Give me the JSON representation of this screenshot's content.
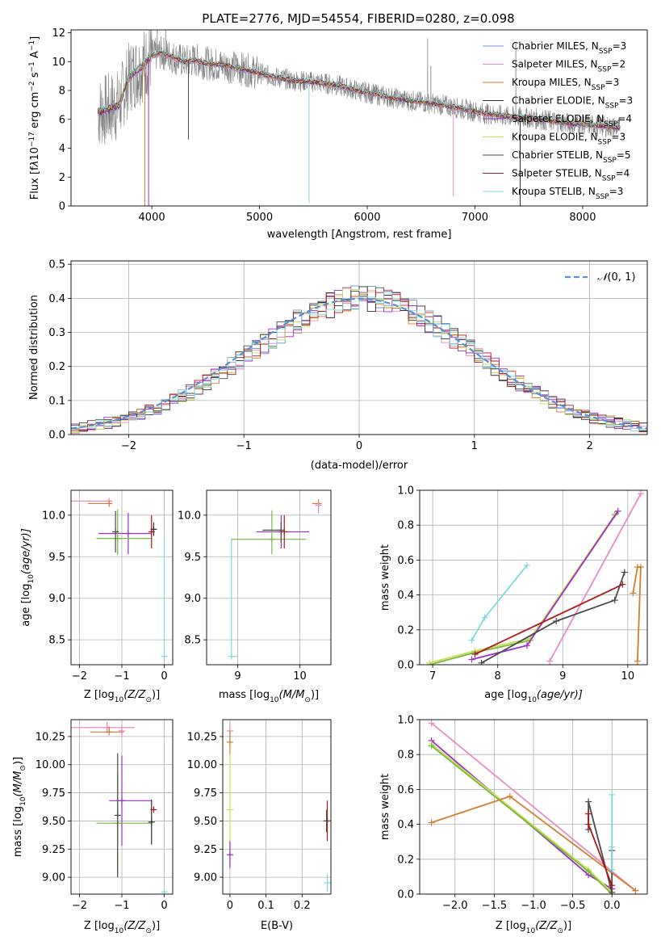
{
  "figure": {
    "title": "PLATE=2776, MJD=54554, FIBERID=0280, z=0.098"
  },
  "chart_data": [
    {
      "id": "spectrum",
      "type": "line",
      "xlabel": "wavelength [Angstrom, rest frame]",
      "ylabel_parts": [
        "Flux [f",
        "λ",
        "10",
        "−17",
        " erg cm",
        "−2",
        " s",
        "−1",
        " A",
        "−1",
        "]"
      ],
      "xlim": [
        3250,
        8600
      ],
      "ylim": [
        0,
        12.2
      ],
      "xticks": [
        4000,
        5000,
        6000,
        7000,
        8000
      ],
      "yticks": [
        0,
        2,
        4,
        6,
        8,
        10,
        12
      ],
      "grid": false,
      "legend_position": "top-right",
      "legend": [
        {
          "label": "Chabrier MILES, N",
          "sub": "SSP",
          "tail": "=3",
          "color": "#6b8fd6"
        },
        {
          "label": "Salpeter MILES, N",
          "sub": "SSP",
          "tail": "=2",
          "color": "#e88cc4"
        },
        {
          "label": "Kroupa MILES, N",
          "sub": "SSP",
          "tail": "=3",
          "color": "#d07f2f"
        },
        {
          "label": "Chabrier ELODIE, N",
          "sub": "SSP",
          "tail": "=3",
          "color": "#2f2f2f"
        },
        {
          "label": "Salpeter ELODIE, N",
          "sub": "SSP",
          "tail": "=4",
          "color": "#9b2fc8"
        },
        {
          "label": "Kroupa ELODIE, N",
          "sub": "SSP",
          "tail": "=3",
          "color": "#c7e15a"
        },
        {
          "label": "Chabrier STELIB, N",
          "sub": "SSP",
          "tail": "=5",
          "color": "#4a4a4a"
        },
        {
          "label": "Salpeter STELIB, N",
          "sub": "SSP",
          "tail": "=4",
          "color": "#b01818"
        },
        {
          "label": "Kroupa STELIB, N",
          "sub": "SSP",
          "tail": "=3",
          "color": "#7fd9dc"
        }
      ],
      "data_color": "#808080",
      "envelope": [
        [
          3500,
          6.5
        ],
        [
          3600,
          6.7
        ],
        [
          3700,
          7.0
        ],
        [
          3750,
          8.2
        ],
        [
          3800,
          9.0
        ],
        [
          3900,
          9.6
        ],
        [
          4000,
          10.4
        ],
        [
          4100,
          10.6
        ],
        [
          4200,
          10.3
        ],
        [
          4300,
          10.0
        ],
        [
          4400,
          10.1
        ],
        [
          4500,
          9.9
        ],
        [
          4700,
          9.7
        ],
        [
          4900,
          9.4
        ],
        [
          5100,
          9.0
        ],
        [
          5300,
          8.7
        ],
        [
          5500,
          8.6
        ],
        [
          5700,
          8.4
        ],
        [
          5900,
          8.0
        ],
        [
          6100,
          7.7
        ],
        [
          6300,
          7.4
        ],
        [
          6500,
          7.2
        ],
        [
          6700,
          7.0
        ],
        [
          6900,
          6.7
        ],
        [
          7100,
          6.4
        ],
        [
          7300,
          6.2
        ],
        [
          7500,
          6.1
        ],
        [
          7700,
          5.9
        ],
        [
          7900,
          5.7
        ],
        [
          8100,
          5.6
        ],
        [
          8350,
          5.4
        ]
      ],
      "dips": [
        [
          3935,
          0
        ],
        [
          3970,
          0
        ],
        [
          4340,
          4.6
        ],
        [
          5460,
          0.2
        ],
        [
          6800,
          0.7
        ],
        [
          7420,
          0
        ]
      ],
      "spikes": [
        [
          6560,
          11.6
        ],
        [
          6590,
          9.7
        ],
        [
          7380,
          11.3
        ],
        [
          4050,
          12.2
        ],
        [
          4130,
          12.2
        ]
      ]
    },
    {
      "id": "residuals",
      "type": "histogram",
      "xlabel": "(data-model)/error",
      "ylabel": "Normed distribution",
      "xlim": [
        -2.5,
        2.5
      ],
      "ylim": [
        0,
        0.51
      ],
      "xticks": [
        -2,
        -1,
        0,
        1,
        2
      ],
      "yticks": [
        0.0,
        0.1,
        0.2,
        0.3,
        0.4,
        0.5
      ],
      "grid": true,
      "legend_position": "top-right",
      "legend_label_parts": [
        "𝒩",
        "(0, 1)"
      ],
      "gauss_color": "#5b8dd9",
      "bin_width": 0.1,
      "bin_start": -2.5,
      "base": [
        0.018,
        0.02,
        0.025,
        0.03,
        0.035,
        0.04,
        0.046,
        0.052,
        0.06,
        0.068,
        0.078,
        0.088,
        0.1,
        0.112,
        0.124,
        0.138,
        0.152,
        0.168,
        0.184,
        0.2,
        0.216,
        0.232,
        0.25,
        0.266,
        0.284,
        0.3,
        0.316,
        0.332,
        0.346,
        0.36,
        0.372,
        0.38,
        0.39,
        0.396,
        0.4,
        0.405,
        0.4,
        0.398,
        0.39,
        0.38,
        0.37,
        0.36,
        0.345,
        0.33,
        0.316,
        0.3,
        0.282,
        0.266,
        0.25,
        0.232,
        0.214,
        0.198,
        0.182,
        0.166,
        0.15,
        0.136,
        0.122,
        0.11,
        0.098,
        0.086,
        0.076,
        0.066,
        0.058,
        0.05,
        0.044,
        0.038,
        0.032,
        0.028,
        0.024,
        0.02
      ]
    },
    {
      "id": "age-vs-Z",
      "type": "scatter",
      "xlabel_parts": [
        "Z [log",
        "10",
        "(Z/Z",
        "⊙",
        ")]"
      ],
      "ylabel_parts": [
        "age  [log",
        "10",
        "(age/yr)]"
      ],
      "xlim": [
        -2.2,
        0.2
      ],
      "ylim": [
        8.2,
        10.3
      ],
      "xticks": [
        -2,
        -1,
        0
      ],
      "yticks": [
        8.5,
        9.0,
        9.5,
        10.0
      ],
      "grid": true,
      "errorbars": [
        {
          "x": -1.3,
          "y": 10.17,
          "xerr": [
            1.0,
            0.05
          ],
          "yerr": [
            0.0,
            0.0
          ],
          "color": "#e88cc4"
        },
        {
          "x": -1.3,
          "y": 10.14,
          "xerr": [
            0.5,
            0.0
          ],
          "yerr": [
            0.0,
            0.0
          ],
          "color": "#d07f2f"
        },
        {
          "x": -0.85,
          "y": 9.78,
          "xerr": [
            0.7,
            0.55
          ],
          "yerr": [
            0.25,
            0.25
          ],
          "color": "#9b2fc8"
        },
        {
          "x": -1.1,
          "y": 9.72,
          "xerr": [
            0.5,
            0.8
          ],
          "yerr": [
            0.2,
            0.35
          ],
          "color": "#7ab83a"
        },
        {
          "x": -0.25,
          "y": 9.83,
          "xerr": [
            0.0,
            0.0
          ],
          "yerr": [
            0.08,
            0.08
          ],
          "color": "#2f2f2f"
        },
        {
          "x": -0.3,
          "y": 9.8,
          "xerr": [
            0.0,
            0.0
          ],
          "yerr": [
            0.2,
            0.2
          ],
          "color": "#b01818"
        },
        {
          "x": -1.15,
          "y": 9.8,
          "xerr": [
            0.0,
            0.0
          ],
          "yerr": [
            0.25,
            0.25
          ],
          "color": "#4a4a4a"
        },
        {
          "x": 0.0,
          "y": 8.3,
          "xerr": [
            0.0,
            0.05
          ],
          "yerr": [
            0.0,
            1.45
          ],
          "color": "#7fd9dc"
        }
      ]
    },
    {
      "id": "age-vs-mass",
      "type": "scatter",
      "xlabel_parts": [
        "mass [log",
        "10",
        "(M/M",
        "⊙",
        ")]"
      ],
      "xlim": [
        8.5,
        10.5
      ],
      "ylim": [
        8.2,
        10.3
      ],
      "xticks": [
        9,
        10
      ],
      "yticks": [
        8.5,
        9.0,
        9.5,
        10.0
      ],
      "grid": true,
      "errorbars": [
        {
          "x": 10.3,
          "y": 10.14,
          "xerr": [
            0.1,
            0.05
          ],
          "yerr": [
            0.05,
            0.05
          ],
          "color": "#d07f2f"
        },
        {
          "x": 10.3,
          "y": 10.12,
          "xerr": [
            0.0,
            0.05
          ],
          "yerr": [
            0.1,
            0.05
          ],
          "color": "#e88cc4"
        },
        {
          "x": 9.7,
          "y": 9.8,
          "xerr": [
            0.4,
            0.45
          ],
          "yerr": [
            0.2,
            0.2
          ],
          "color": "#9b2fc8"
        },
        {
          "x": 9.55,
          "y": 9.71,
          "xerr": [
            0.65,
            0.55
          ],
          "yerr": [
            0.18,
            0.35
          ],
          "color": "#7ab83a"
        },
        {
          "x": 9.7,
          "y": 9.82,
          "xerr": [
            0.3,
            0.0
          ],
          "yerr": [
            0.15,
            0.1
          ],
          "color": "#4a4a4a"
        },
        {
          "x": 9.75,
          "y": 9.8,
          "xerr": [
            0.0,
            0.0
          ],
          "yerr": [
            0.2,
            0.2
          ],
          "color": "#b01818"
        },
        {
          "x": 8.9,
          "y": 8.3,
          "xerr": [
            0.0,
            0.1
          ],
          "yerr": [
            0.0,
            1.42
          ],
          "color": "#7fd9dc"
        }
      ]
    },
    {
      "id": "massweight-vs-age",
      "type": "line",
      "xlabel_parts": [
        "age  [log",
        "10",
        "(age/yr)]"
      ],
      "ylabel": "mass weight",
      "xlim": [
        6.8,
        10.3
      ],
      "ylim": [
        0.0,
        1.0
      ],
      "xticks": [
        7,
        8,
        9,
        10
      ],
      "yticks": [
        0.0,
        0.2,
        0.4,
        0.6,
        0.8,
        1.0
      ],
      "grid": true,
      "series": [
        {
          "color": "#7ab83a",
          "x": [
            6.95,
            7.65,
            8.5,
            9.8
          ],
          "y": [
            0.0,
            0.07,
            0.14,
            0.86
          ]
        },
        {
          "color": "#c7e15a",
          "x": [
            6.95,
            7.65,
            8.5,
            9.82
          ],
          "y": [
            0.01,
            0.08,
            0.15,
            0.87
          ]
        },
        {
          "color": "#9b2fc8",
          "x": [
            7.6,
            8.45,
            9.85
          ],
          "y": [
            0.03,
            0.11,
            0.88
          ]
        },
        {
          "color": "#e88cc4",
          "x": [
            8.8,
            10.2
          ],
          "y": [
            0.02,
            0.98
          ]
        },
        {
          "color": "#b01818",
          "x": [
            7.65,
            9.92
          ],
          "y": [
            0.06,
            0.46
          ]
        },
        {
          "color": "#4a4a4a",
          "x": [
            7.75,
            8.9,
            9.8,
            9.95
          ],
          "y": [
            0.01,
            0.25,
            0.37,
            0.53
          ]
        },
        {
          "color": "#d07f2f",
          "x": [
            10.08,
            10.15,
            10.2,
            10.15
          ],
          "y": [
            0.41,
            0.56,
            0.56,
            0.02
          ]
        },
        {
          "color": "#7fd9dc",
          "x": [
            7.6,
            7.8,
            8.45
          ],
          "y": [
            0.14,
            0.27,
            0.57
          ]
        }
      ]
    },
    {
      "id": "mass-vs-Z",
      "type": "scatter",
      "xlabel_parts": [
        "Z [log",
        "10",
        "(Z/Z",
        "⊙",
        ")]"
      ],
      "ylabel_parts": [
        "mass [log",
        "10",
        "(M/M",
        "⊙",
        ")]"
      ],
      "xlim": [
        -2.2,
        0.2
      ],
      "ylim": [
        8.85,
        10.4
      ],
      "xticks": [
        -2,
        -1,
        0
      ],
      "yticks": [
        9.0,
        9.25,
        9.5,
        9.75,
        10.0,
        10.25
      ],
      "grid": true,
      "errorbars": [
        {
          "x": -1.35,
          "y": 10.33,
          "xerr": [
            0.85,
            0.65
          ],
          "yerr": [
            0.05,
            0.05
          ],
          "color": "#e88cc4"
        },
        {
          "x": -1.3,
          "y": 10.29,
          "xerr": [
            0.45,
            0.35
          ],
          "yerr": [
            0.0,
            0.05
          ],
          "color": "#d07f2f"
        },
        {
          "x": -1.0,
          "y": 10.3,
          "xerr": [
            0.0,
            0.0
          ],
          "yerr": [
            0.05,
            0.05
          ],
          "color": "#e88cc4"
        },
        {
          "x": -1.0,
          "y": 9.68,
          "xerr": [
            0.3,
            0.7
          ],
          "yerr": [
            0.4,
            0.4
          ],
          "color": "#9b2fc8"
        },
        {
          "x": -1.1,
          "y": 9.48,
          "xerr": [
            0.5,
            0.8
          ],
          "yerr": [
            0.45,
            0.45
          ],
          "color": "#7ab83a"
        },
        {
          "x": -0.3,
          "y": 9.49,
          "xerr": [
            0.0,
            0.0
          ],
          "yerr": [
            0.2,
            0.2
          ],
          "color": "#2f2f2f"
        },
        {
          "x": -0.25,
          "y": 9.6,
          "xerr": [
            0.05,
            0.05
          ],
          "yerr": [
            0.0,
            0.0
          ],
          "color": "#b01818"
        },
        {
          "x": -1.1,
          "y": 9.55,
          "xerr": [
            0.0,
            0.0
          ],
          "yerr": [
            0.55,
            0.55
          ],
          "color": "#4a4a4a"
        },
        {
          "x": 0.0,
          "y": 8.87,
          "xerr": [
            0.05,
            0.05
          ],
          "yerr": [
            0.0,
            0.0
          ],
          "color": "#7fd9dc"
        }
      ]
    },
    {
      "id": "mass-vs-EBV",
      "type": "scatter",
      "xlabel": "E(B-V)",
      "xlim": [
        -0.02,
        0.28
      ],
      "ylim": [
        8.85,
        10.4
      ],
      "xticks": [
        0.0,
        0.1,
        0.2
      ],
      "yticks": [
        9.0,
        9.25,
        9.5,
        9.75,
        10.0,
        10.25
      ],
      "grid": true,
      "errorbars": [
        {
          "x": 0.0,
          "y": 10.3,
          "xerr": [
            0,
            0
          ],
          "yerr": [
            0.08,
            0.08
          ],
          "color": "#e88cc4"
        },
        {
          "x": 0.0,
          "y": 10.2,
          "xerr": [
            0,
            0
          ],
          "yerr": [
            0.12,
            0.1
          ],
          "color": "#d07f2f"
        },
        {
          "x": 0.0,
          "y": 9.6,
          "xerr": [
            0,
            0
          ],
          "yerr": [
            0.5,
            0.5
          ],
          "color": "#c7e15a"
        },
        {
          "x": 0.0,
          "y": 9.2,
          "xerr": [
            0,
            0
          ],
          "yerr": [
            0.12,
            0.12
          ],
          "color": "#9b2fc8"
        },
        {
          "x": 0.27,
          "y": 9.5,
          "xerr": [
            0,
            0
          ],
          "yerr": [
            0.18,
            0.18
          ],
          "color": "#b01818"
        },
        {
          "x": 0.268,
          "y": 9.5,
          "xerr": [
            0,
            0
          ],
          "yerr": [
            0.1,
            0.1
          ],
          "color": "#4a4a4a"
        },
        {
          "x": 0.27,
          "y": 8.95,
          "xerr": [
            0,
            0
          ],
          "yerr": [
            0.08,
            0.08
          ],
          "color": "#7fd9dc"
        }
      ]
    },
    {
      "id": "massweight-vs-Z",
      "type": "line",
      "xlabel_parts": [
        "Z [log",
        "10",
        "(Z/Z",
        "⊙",
        ")]"
      ],
      "ylabel": "mass weight",
      "xlim": [
        -2.45,
        0.45
      ],
      "ylim": [
        0.0,
        1.0
      ],
      "xticks": [
        -2.0,
        -1.5,
        -1.0,
        -0.5,
        0.0
      ],
      "xticklabels": [
        "−2.0",
        "−1.5",
        "−1.0",
        "−0.5",
        "0.0"
      ],
      "yticks": [
        0.0,
        0.2,
        0.4,
        0.6,
        0.8,
        1.0
      ],
      "grid": true,
      "series": [
        {
          "color": "#e88cc4",
          "x": [
            -2.3,
            0.3
          ],
          "y": [
            0.98,
            0.02
          ]
        },
        {
          "color": "#9b2fc8",
          "x": [
            -2.3,
            -0.3,
            0.0
          ],
          "y": [
            0.88,
            0.11,
            0.03
          ]
        },
        {
          "color": "#c7e15a",
          "x": [
            -2.3,
            -0.3,
            0.0
          ],
          "y": [
            0.86,
            0.14,
            0.01
          ]
        },
        {
          "color": "#7ab83a",
          "x": [
            -2.3,
            -0.3,
            0.0
          ],
          "y": [
            0.85,
            0.13,
            0.0
          ]
        },
        {
          "color": "#d07f2f",
          "x": [
            -2.3,
            -1.3,
            0.3
          ],
          "y": [
            0.41,
            0.56,
            0.02
          ]
        },
        {
          "color": "#4a4a4a",
          "x": [
            -0.3,
            -0.3,
            0.0,
            0.0
          ],
          "y": [
            0.37,
            0.53,
            0.01,
            0.25
          ]
        },
        {
          "color": "#b01818",
          "x": [
            -0.3,
            -0.3,
            0.0
          ],
          "y": [
            0.46,
            0.4,
            0.05
          ]
        },
        {
          "color": "#7fd9dc",
          "x": [
            0.0,
            0.0,
            0.0
          ],
          "y": [
            0.57,
            0.27,
            0.14
          ]
        }
      ]
    }
  ]
}
